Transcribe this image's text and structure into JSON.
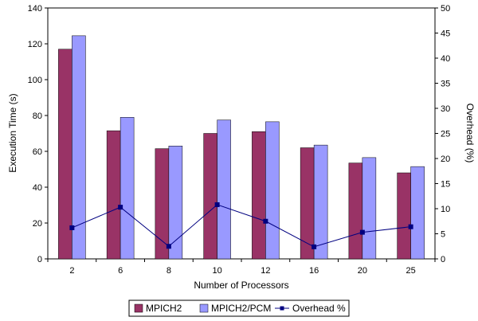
{
  "chart_data": {
    "type": "bar",
    "categories": [
      "2",
      "6",
      "8",
      "10",
      "12",
      "16",
      "20",
      "25"
    ],
    "xlabel": "Number of Processors",
    "ylabel": "Execution Time (s)",
    "y2label": "Overhead (%)",
    "ylim": [
      0,
      140
    ],
    "yticks": [
      "0",
      "20",
      "40",
      "60",
      "80",
      "100",
      "120",
      "140"
    ],
    "y2lim": [
      0,
      50
    ],
    "y2ticks": [
      "0",
      "5",
      "10",
      "15",
      "20",
      "25",
      "30",
      "35",
      "40",
      "45",
      "50"
    ],
    "grid": false,
    "legend_position": "bottom",
    "series": [
      {
        "name": "MPICH2",
        "kind": "bar",
        "axis": "left",
        "color": "#993366",
        "values": [
          117,
          71.5,
          61.5,
          70,
          71,
          62,
          53.5,
          48
        ]
      },
      {
        "name": "MPICH2/PCM",
        "kind": "bar",
        "axis": "left",
        "color": "#9999ff",
        "values": [
          124.5,
          79,
          63,
          77.5,
          76.5,
          63.5,
          56.5,
          51.5
        ]
      },
      {
        "name": "Overhead %",
        "kind": "line",
        "axis": "right",
        "color": "#000080",
        "values": [
          6.2,
          10.3,
          2.5,
          10.8,
          7.5,
          2.4,
          5.3,
          6.4
        ]
      }
    ]
  }
}
